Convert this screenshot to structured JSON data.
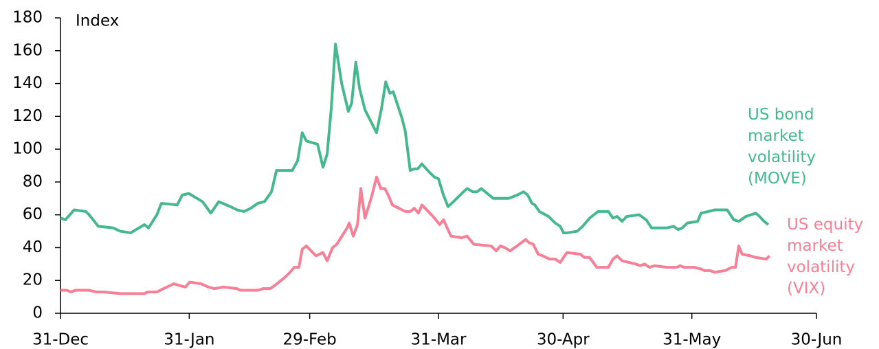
{
  "chart_data": {
    "type": "line",
    "y_label": "Index",
    "xlim": [
      0,
      182
    ],
    "xticks": [
      {
        "value": 0,
        "label": "31-Dec"
      },
      {
        "value": 31,
        "label": "31-Jan"
      },
      {
        "value": 60,
        "label": "29-Feb"
      },
      {
        "value": 91,
        "label": "31-Mar"
      },
      {
        "value": 121,
        "label": "30-Apr"
      },
      {
        "value": 152,
        "label": "31-May"
      },
      {
        "value": 182,
        "label": "30-Jun"
      }
    ],
    "ylim": [
      0,
      180
    ],
    "yticks": [
      0,
      20,
      40,
      60,
      80,
      100,
      120,
      140,
      160,
      180
    ],
    "series": [
      {
        "name": "US bond market volatility (MOVE)",
        "color": "#45b88e",
        "x": [
          0,
          1.2,
          3.3,
          6.1,
          6.9,
          9.1,
          12.7,
          14.4,
          16.9,
          20.2,
          21.2,
          23.2,
          24.3,
          28.1,
          29.3,
          30.9,
          34.2,
          36.2,
          38.1,
          40.9,
          42.5,
          44.2,
          45.8,
          47.5,
          49.1,
          50.8,
          52.0,
          55.8,
          57.1,
          58.2,
          59.2,
          61.9,
          63.2,
          64.2,
          65.2,
          66.2,
          67.7,
          69.3,
          70.1,
          71.1,
          72.0,
          73.3,
          76.1,
          77.3,
          78.3,
          79.3,
          80.1,
          82.2,
          83.0,
          84.2,
          85.2,
          86.0,
          87.0,
          88.8,
          90.0,
          91.0,
          92.2,
          93.3,
          94.6,
          96.6,
          97.9,
          99.3,
          100.3,
          101.3,
          104.2,
          105.4,
          107.9,
          109.9,
          111.5,
          112.5,
          113.5,
          114.2,
          115.3,
          117.5,
          119.1,
          120.3,
          121.1,
          121.9,
          124.4,
          125.7,
          127.4,
          129.4,
          131.9,
          133.0,
          134.0,
          135.2,
          136.3,
          139.3,
          141.0,
          142.3,
          145.9,
          147.6,
          148.7,
          149.7,
          150.9,
          153.4,
          154.2,
          155.9,
          157.5,
          160.5,
          162.1,
          163.3,
          165.0,
          167.4,
          168.3,
          169.4,
          170.4
        ],
        "values": [
          58,
          57,
          63,
          62,
          60,
          53,
          52,
          50,
          49,
          54,
          52,
          60,
          67,
          66,
          72,
          73,
          68,
          61,
          68,
          65,
          63,
          62,
          64,
          67,
          68,
          74,
          87,
          87,
          93,
          110,
          105,
          103,
          89,
          97,
          125,
          164,
          140,
          123,
          128,
          153,
          137,
          124,
          110,
          125,
          141,
          134,
          135,
          119,
          111,
          87,
          88,
          88,
          91,
          86,
          83,
          82,
          72,
          65,
          68,
          73,
          76,
          74,
          74,
          76,
          70,
          70,
          70,
          72,
          74,
          72,
          67,
          66,
          62,
          59,
          55,
          53,
          49,
          49,
          50,
          53,
          58,
          62,
          62,
          58,
          59,
          56,
          59,
          60,
          57,
          52,
          52,
          53,
          51,
          52,
          55,
          56,
          61,
          62,
          63,
          63,
          57,
          56,
          59,
          61,
          59,
          56,
          54
        ]
      },
      {
        "name": "US equity market volatility (VIX)",
        "color": "#f77f96",
        "x": [
          0,
          1.5,
          2.5,
          3.6,
          6.9,
          8.6,
          10.3,
          14.4,
          17.7,
          20.2,
          21.0,
          23.2,
          24.8,
          27.3,
          28.5,
          30.1,
          31.1,
          33.8,
          35.6,
          37.1,
          39.2,
          42.5,
          43.3,
          46.3,
          47.5,
          48.8,
          50.5,
          51.6,
          53.6,
          54.9,
          56.3,
          57.4,
          58.2,
          59.2,
          61.5,
          63.2,
          64.2,
          65.5,
          66.5,
          69.0,
          69.5,
          70.5,
          71.5,
          72.3,
          73.3,
          74.3,
          75.0,
          76.1,
          77.1,
          78.1,
          78.9,
          79.9,
          83.0,
          84.2,
          85.2,
          86.2,
          87.0,
          89.7,
          91.3,
          92.2,
          94.0,
          96.6,
          97.9,
          99.5,
          103.7,
          104.9,
          105.9,
          107.0,
          108.2,
          109.9,
          112.0,
          112.8,
          113.8,
          115.0,
          116.1,
          117.8,
          119.1,
          120.3,
          121.9,
          125.2,
          126.1,
          127.4,
          129.1,
          131.9,
          133.0,
          134.0,
          135.2,
          138.5,
          139.6,
          140.6,
          141.8,
          143.0,
          145.9,
          148.4,
          149.2,
          150.1,
          152.5,
          154.2,
          155.0,
          156.4,
          157.5,
          160.0,
          161.6,
          162.5,
          163.3,
          164.1,
          166.1,
          167.4,
          169.9,
          170.7
        ],
        "values": [
          14,
          14,
          13,
          14,
          14,
          13,
          13,
          12,
          12,
          12,
          13,
          13,
          15,
          18,
          17,
          16,
          19,
          18,
          16,
          15,
          16,
          15,
          14,
          14,
          14,
          15,
          15,
          17,
          21,
          24,
          28,
          28,
          39,
          41,
          35,
          37,
          32,
          40,
          42,
          52,
          55,
          47,
          54,
          76,
          58,
          66,
          72,
          83,
          76,
          76,
          72,
          66,
          62,
          62,
          64,
          61,
          66,
          59,
          54,
          57,
          47,
          46,
          47,
          42,
          41,
          38,
          41,
          40,
          38,
          41,
          45,
          43,
          42,
          36,
          35,
          33,
          33,
          31,
          37,
          36,
          34,
          34,
          28,
          28,
          33,
          35,
          32,
          30,
          29,
          30,
          28,
          29,
          28,
          28,
          29,
          28,
          28,
          27,
          26,
          26,
          25,
          26,
          28,
          28,
          41,
          36,
          35,
          34,
          33,
          35
        ]
      }
    ]
  }
}
